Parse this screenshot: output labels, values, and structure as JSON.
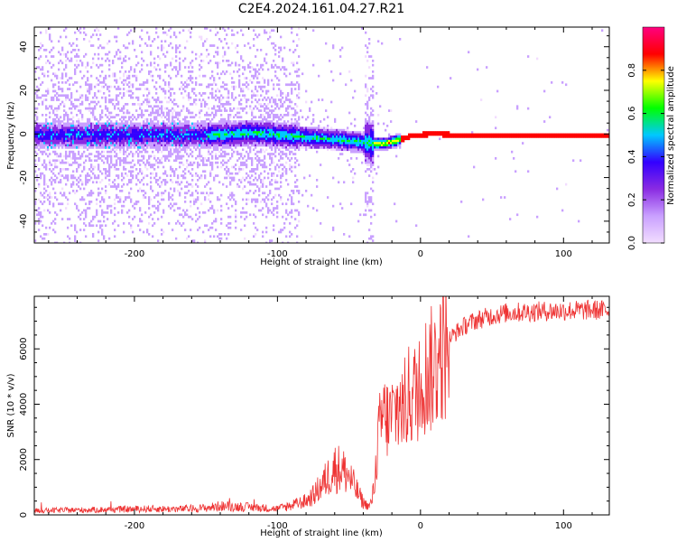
{
  "title": "C2E4.2024.161.04.27.R21",
  "chart_data": [
    {
      "type": "heatmap",
      "title": "C2E4.2024.161.04.27.R21",
      "xlabel": "Height of straight line (km)",
      "ylabel": "Frequency (Hz)",
      "xlim": [
        -270,
        132
      ],
      "ylim": [
        -50,
        49
      ],
      "xticks": [
        -200,
        -100,
        0,
        100
      ],
      "yticks": [
        -40,
        -20,
        0,
        20,
        40
      ],
      "colorbar": {
        "label": "Normalized spectral amplitude",
        "range": [
          0,
          1
        ],
        "ticks": [
          "0.0",
          "0.2",
          "0.4",
          "0.6",
          "0.8"
        ],
        "colors": [
          "#f2ddff",
          "#c9a0ff",
          "#8a2be2",
          "#3300ff",
          "#00c8ff",
          "#00ff00",
          "#ffff00",
          "#ff0000",
          "#ff0080"
        ]
      },
      "ridge": {
        "x": [
          -270,
          -140,
          -120,
          -100,
          -80,
          -60,
          -45,
          -35,
          -25,
          -20,
          -15,
          -10,
          -5,
          0,
          10,
          20,
          132
        ],
        "y": [
          0,
          0,
          1,
          0,
          -1,
          -2,
          -3,
          -4,
          -4,
          -3,
          -2,
          -1,
          0,
          0,
          1,
          0,
          0
        ]
      }
    },
    {
      "type": "line",
      "xlabel": "Height of straight line (km)",
      "ylabel": "SNR (10 * v/v)",
      "xlim": [
        -270,
        132
      ],
      "ylim": [
        0,
        7900
      ],
      "xticks": [
        -200,
        -100,
        0,
        100
      ],
      "yticks": [
        0,
        2000,
        4000,
        6000
      ],
      "color": "#ee3333",
      "x": [
        -270,
        -250,
        -230,
        -210,
        -190,
        -170,
        -150,
        -140,
        -130,
        -120,
        -110,
        -100,
        -90,
        -80,
        -75,
        -70,
        -65,
        -60,
        -55,
        -50,
        -45,
        -40,
        -36,
        -34,
        -32,
        -30,
        -28,
        -26,
        -24,
        -22,
        -20,
        -18,
        -16,
        -14,
        -12,
        -10,
        -8,
        -6,
        -4,
        -2,
        0,
        2,
        4,
        6,
        8,
        10,
        12,
        14,
        16,
        18,
        20,
        25,
        30,
        35,
        40,
        50,
        60,
        80,
        100,
        120,
        132
      ],
      "y": [
        150,
        170,
        180,
        200,
        220,
        210,
        250,
        320,
        300,
        280,
        250,
        220,
        350,
        500,
        700,
        1000,
        1350,
        1700,
        1650,
        1400,
        900,
        450,
        300,
        500,
        1200,
        2500,
        3300,
        3600,
        3500,
        3400,
        3600,
        3700,
        3900,
        4000,
        3800,
        4100,
        4300,
        4400,
        4350,
        4600,
        4900,
        5000,
        5100,
        5200,
        5250,
        5350,
        5600,
        5800,
        5950,
        6100,
        6350,
        6600,
        6800,
        6950,
        7050,
        7200,
        7300,
        7350,
        7380,
        7400,
        7400
      ]
    }
  ]
}
